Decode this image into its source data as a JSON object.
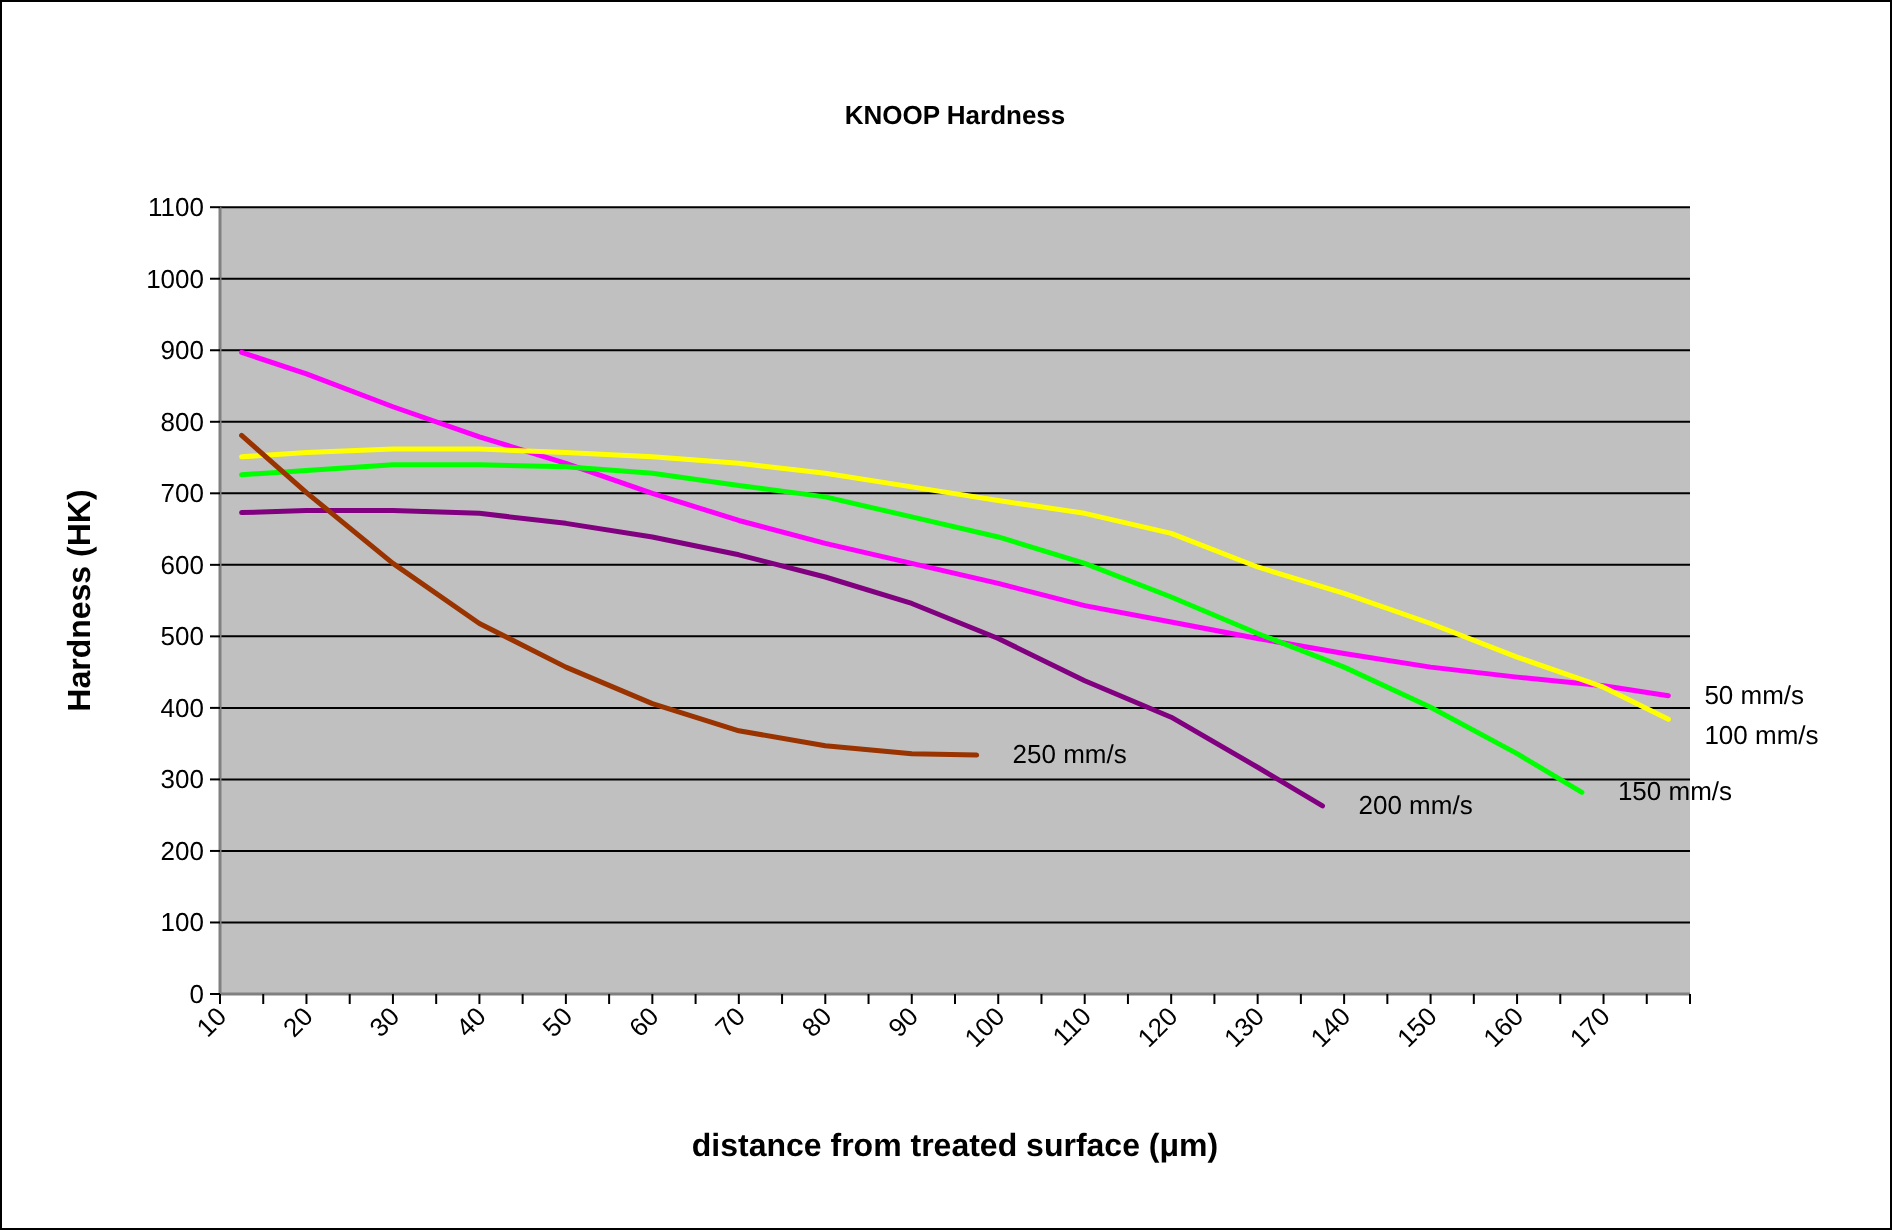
{
  "chart_data": {
    "type": "line",
    "title": "KNOOP Hardness",
    "xlabel": "distance from treated surface (μm)",
    "ylabel": "Hardness (HK)",
    "xlim": [
      10,
      180
    ],
    "xticks": [
      10,
      {
        "value": 15,
        "label": null
      },
      20,
      {
        "value": 25,
        "label": null
      },
      30,
      {
        "value": 35,
        "label": null
      },
      40,
      {
        "value": 45,
        "label": null
      },
      50,
      {
        "value": 55,
        "label": null
      },
      60,
      {
        "value": 65,
        "label": null
      },
      70,
      {
        "value": 75,
        "label": null
      },
      80,
      {
        "value": 85,
        "label": null
      },
      90,
      {
        "value": 95,
        "label": null
      },
      100,
      {
        "value": 105,
        "label": null
      },
      110,
      {
        "value": 115,
        "label": null
      },
      120,
      {
        "value": 125,
        "label": null
      },
      130,
      {
        "value": 135,
        "label": null
      },
      140,
      {
        "value": 145,
        "label": null
      },
      150,
      {
        "value": 155,
        "label": null
      },
      160,
      {
        "value": 165,
        "label": null
      },
      170,
      {
        "value": 175,
        "label": null
      },
      {
        "value": 180,
        "label": null
      }
    ],
    "ylim": [
      0,
      1100
    ],
    "yticks": [
      0,
      100,
      200,
      300,
      400,
      500,
      600,
      700,
      800,
      900,
      1000,
      1100
    ],
    "grid": "y",
    "line_style": "solid",
    "series": [
      {
        "name": "50 mm/s",
        "color": "#ff00ff",
        "x": [
          12.5,
          20,
          30,
          40,
          50,
          60,
          70,
          80,
          90,
          100,
          110,
          120,
          130,
          140,
          150,
          160,
          170,
          177.5
        ],
        "values": [
          897,
          867,
          821,
          779,
          742,
          700,
          662,
          630,
          602,
          574,
          543,
          520,
          497,
          476,
          457,
          443,
          431,
          417
        ]
      },
      {
        "name": "100 mm/s",
        "color": "#ffff00",
        "x": [
          12.5,
          20,
          30,
          40,
          50,
          60,
          70,
          80,
          90,
          100,
          110,
          120,
          130,
          140,
          150,
          160,
          170,
          177.5
        ],
        "values": [
          751,
          757,
          762,
          762,
          757,
          751,
          742,
          728,
          709,
          690,
          672,
          644,
          597,
          560,
          518,
          471,
          429,
          384
        ]
      },
      {
        "name": "150 mm/s",
        "color": "#00ff00",
        "x": [
          12.5,
          20,
          30,
          40,
          50,
          60,
          70,
          80,
          90,
          100,
          110,
          120,
          130,
          140,
          150,
          160,
          167.5
        ],
        "values": [
          726,
          732,
          740,
          740,
          737,
          728,
          711,
          695,
          667,
          639,
          602,
          555,
          504,
          457,
          401,
          336,
          282
        ]
      },
      {
        "name": "200 mm/s",
        "color": "#800080",
        "x": [
          12.5,
          20,
          30,
          40,
          50,
          60,
          70,
          80,
          90,
          100,
          110,
          120,
          130,
          137.5
        ],
        "values": [
          673,
          676,
          676,
          672,
          658,
          639,
          614,
          583,
          546,
          497,
          438,
          387,
          317,
          263
        ]
      },
      {
        "name": "250 mm/s",
        "color": "#993300",
        "x": [
          12.5,
          20,
          30,
          40,
          50,
          60,
          70,
          80,
          90,
          97.5
        ],
        "values": [
          781,
          701,
          602,
          518,
          457,
          406,
          368,
          347,
          336,
          334
        ]
      }
    ]
  }
}
